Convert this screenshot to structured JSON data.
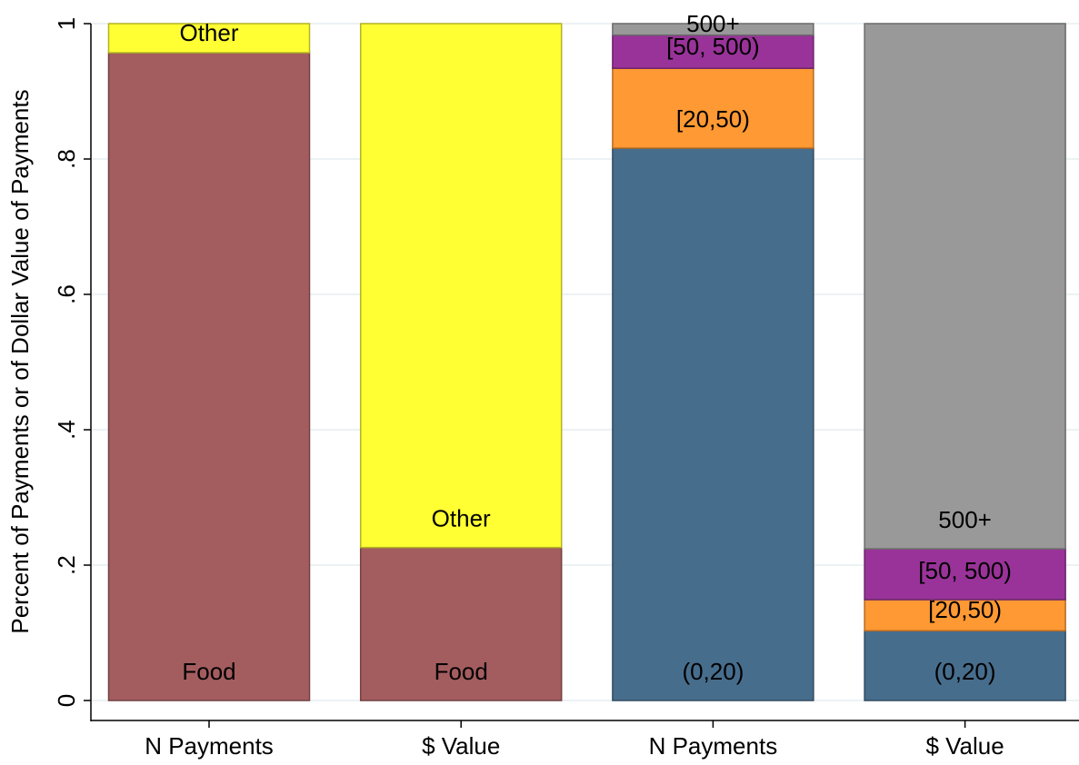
{
  "chart_data": {
    "type": "stacked_bar",
    "ylabel": "Percent of Payments or of Dollar Value of Payments",
    "categories": [
      "N Payments",
      "$ Value",
      "N Payments",
      "$ Value"
    ],
    "series": [
      {
        "name": "Food",
        "color": "#a45d5f",
        "values": [
          0.957,
          0.226,
          null,
          null
        ]
      },
      {
        "name": "Other",
        "color": "#ffff33",
        "values": [
          0.043,
          0.774,
          null,
          null
        ]
      },
      {
        "name": "(0,20)",
        "color": "#476d8c",
        "values": [
          null,
          null,
          0.816,
          0.103
        ]
      },
      {
        "name": "[20,50)",
        "color": "#ff9933",
        "values": [
          null,
          null,
          0.118,
          0.046
        ]
      },
      {
        "name": "[50, 500)",
        "color": "#993399",
        "values": [
          null,
          null,
          0.049,
          0.075
        ]
      },
      {
        "name": "500+",
        "color": "#999999",
        "values": [
          null,
          null,
          0.017,
          0.776
        ]
      }
    ],
    "ylim": [
      0,
      1
    ],
    "yticks": [
      0,
      {
        "value": 0.2,
        "label": ".2"
      },
      {
        "value": 0.4,
        "label": ".4"
      },
      {
        "value": 0.6,
        "label": ".6"
      },
      {
        "value": 0.8,
        "label": ".8"
      },
      1
    ],
    "grid": true
  }
}
